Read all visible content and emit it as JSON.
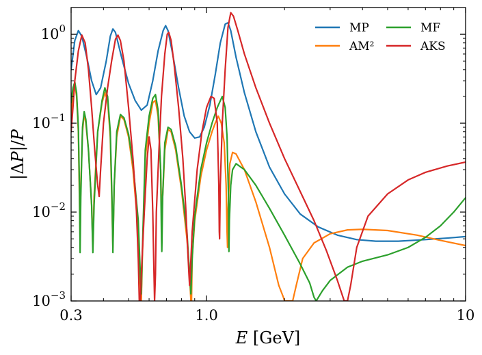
{
  "chart_data": {
    "type": "line",
    "title": "",
    "xlabel": "E [GeV]",
    "ylabel": "|ΔP|/P",
    "xscale": "log",
    "yscale": "log",
    "xlim": [
      0.3,
      10
    ],
    "ylim": [
      0.001,
      2
    ],
    "grid": false,
    "legend": {
      "position": "top-right",
      "columns": 2
    },
    "x_ticks": [
      {
        "value": 0.3,
        "label": "0.3"
      },
      {
        "value": 1.0,
        "label": "1.0"
      },
      {
        "value": 10,
        "label": "10"
      }
    ],
    "y_ticks": [
      {
        "value": 1,
        "base": "10",
        "exp": "0"
      },
      {
        "value": 0.1,
        "base": "10",
        "exp": "−1"
      },
      {
        "value": 0.01,
        "base": "10",
        "exp": "−2"
      },
      {
        "value": 0.001,
        "base": "10",
        "exp": "−3"
      }
    ],
    "series": [
      {
        "name": "MP",
        "color": "#1f77b4",
        "points": [
          [
            0.3,
            0.4
          ],
          [
            0.31,
            0.85
          ],
          [
            0.32,
            1.1
          ],
          [
            0.33,
            0.95
          ],
          [
            0.345,
            0.55
          ],
          [
            0.36,
            0.3
          ],
          [
            0.375,
            0.21
          ],
          [
            0.39,
            0.25
          ],
          [
            0.41,
            0.5
          ],
          [
            0.425,
            0.95
          ],
          [
            0.435,
            1.15
          ],
          [
            0.445,
            1.05
          ],
          [
            0.47,
            0.55
          ],
          [
            0.5,
            0.28
          ],
          [
            0.53,
            0.18
          ],
          [
            0.56,
            0.14
          ],
          [
            0.59,
            0.16
          ],
          [
            0.62,
            0.3
          ],
          [
            0.65,
            0.65
          ],
          [
            0.68,
            1.1
          ],
          [
            0.695,
            1.25
          ],
          [
            0.71,
            1.1
          ],
          [
            0.74,
            0.6
          ],
          [
            0.78,
            0.25
          ],
          [
            0.82,
            0.12
          ],
          [
            0.86,
            0.08
          ],
          [
            0.9,
            0.068
          ],
          [
            0.94,
            0.07
          ],
          [
            0.98,
            0.09
          ],
          [
            1.03,
            0.16
          ],
          [
            1.08,
            0.35
          ],
          [
            1.13,
            0.8
          ],
          [
            1.18,
            1.3
          ],
          [
            1.21,
            1.35
          ],
          [
            1.24,
            1.1
          ],
          [
            1.3,
            0.55
          ],
          [
            1.4,
            0.22
          ],
          [
            1.55,
            0.08
          ],
          [
            1.75,
            0.032
          ],
          [
            2.0,
            0.016
          ],
          [
            2.3,
            0.0095
          ],
          [
            2.7,
            0.0068
          ],
          [
            3.2,
            0.0055
          ],
          [
            3.8,
            0.0049
          ],
          [
            4.5,
            0.0047
          ],
          [
            5.5,
            0.0047
          ],
          [
            7.0,
            0.0049
          ],
          [
            8.5,
            0.0051
          ],
          [
            10.0,
            0.0053
          ]
        ]
      },
      {
        "name": "AM²",
        "color": "#ff7f0e",
        "points": [
          [
            0.3,
            0.12
          ],
          [
            0.305,
            0.22
          ],
          [
            0.31,
            0.27
          ],
          [
            0.315,
            0.2
          ],
          [
            0.32,
            0.08
          ],
          [
            0.323,
            0.015
          ],
          [
            0.325,
            0.005
          ],
          [
            0.327,
            0.02
          ],
          [
            0.332,
            0.08
          ],
          [
            0.337,
            0.13
          ],
          [
            0.342,
            0.1
          ],
          [
            0.35,
            0.05
          ],
          [
            0.36,
            0.012
          ],
          [
            0.364,
            0.004
          ],
          [
            0.368,
            0.015
          ],
          [
            0.38,
            0.08
          ],
          [
            0.395,
            0.17
          ],
          [
            0.405,
            0.22
          ],
          [
            0.415,
            0.18
          ],
          [
            0.425,
            0.07
          ],
          [
            0.432,
            0.01
          ],
          [
            0.435,
            0.004
          ],
          [
            0.44,
            0.02
          ],
          [
            0.45,
            0.07
          ],
          [
            0.465,
            0.12
          ],
          [
            0.48,
            0.11
          ],
          [
            0.5,
            0.07
          ],
          [
            0.52,
            0.03
          ],
          [
            0.545,
            0.006
          ],
          [
            0.555,
            0.0015
          ],
          [
            0.56,
            0.001
          ],
          [
            0.565,
            0.003
          ],
          [
            0.58,
            0.04
          ],
          [
            0.6,
            0.1
          ],
          [
            0.62,
            0.17
          ],
          [
            0.635,
            0.18
          ],
          [
            0.65,
            0.12
          ],
          [
            0.665,
            0.03
          ],
          [
            0.672,
            0.008
          ],
          [
            0.677,
            0.015
          ],
          [
            0.69,
            0.05
          ],
          [
            0.71,
            0.085
          ],
          [
            0.73,
            0.08
          ],
          [
            0.76,
            0.05
          ],
          [
            0.8,
            0.018
          ],
          [
            0.84,
            0.005
          ],
          [
            0.86,
            0.002
          ],
          [
            0.87,
            0.001
          ],
          [
            0.875,
            0.001
          ],
          [
            0.88,
            0.003
          ],
          [
            0.9,
            0.008
          ],
          [
            0.95,
            0.025
          ],
          [
            1.0,
            0.05
          ],
          [
            1.05,
            0.08
          ],
          [
            1.08,
            0.1
          ],
          [
            1.11,
            0.12
          ],
          [
            1.14,
            0.1
          ],
          [
            1.17,
            0.06
          ],
          [
            1.19,
            0.02
          ],
          [
            1.2,
            0.006
          ],
          [
            1.205,
            0.004
          ],
          [
            1.21,
            0.01
          ],
          [
            1.23,
            0.035
          ],
          [
            1.26,
            0.047
          ],
          [
            1.3,
            0.045
          ],
          [
            1.4,
            0.03
          ],
          [
            1.55,
            0.013
          ],
          [
            1.75,
            0.004
          ],
          [
            1.9,
            0.0015
          ],
          [
            1.98,
            0.0011
          ],
          [
            2.0,
            0.001
          ],
          [
            2.15,
            0.001
          ],
          [
            2.22,
            0.0015
          ],
          [
            2.35,
            0.003
          ],
          [
            2.6,
            0.0045
          ],
          [
            3.0,
            0.0057
          ],
          [
            3.5,
            0.0063
          ],
          [
            4.0,
            0.0064
          ],
          [
            5.0,
            0.0062
          ],
          [
            6.5,
            0.0055
          ],
          [
            8.0,
            0.0048
          ],
          [
            10.0,
            0.0042
          ]
        ]
      },
      {
        "name": "MF",
        "color": "#2ca02c",
        "points": [
          [
            0.3,
            0.17
          ],
          [
            0.305,
            0.25
          ],
          [
            0.31,
            0.29
          ],
          [
            0.315,
            0.22
          ],
          [
            0.32,
            0.09
          ],
          [
            0.323,
            0.02
          ],
          [
            0.325,
            0.0035
          ],
          [
            0.327,
            0.015
          ],
          [
            0.332,
            0.09
          ],
          [
            0.337,
            0.135
          ],
          [
            0.342,
            0.11
          ],
          [
            0.35,
            0.05
          ],
          [
            0.36,
            0.012
          ],
          [
            0.364,
            0.0035
          ],
          [
            0.368,
            0.012
          ],
          [
            0.38,
            0.08
          ],
          [
            0.395,
            0.18
          ],
          [
            0.405,
            0.25
          ],
          [
            0.415,
            0.2
          ],
          [
            0.425,
            0.08
          ],
          [
            0.432,
            0.012
          ],
          [
            0.435,
            0.0035
          ],
          [
            0.44,
            0.02
          ],
          [
            0.45,
            0.08
          ],
          [
            0.465,
            0.125
          ],
          [
            0.48,
            0.115
          ],
          [
            0.5,
            0.075
          ],
          [
            0.52,
            0.035
          ],
          [
            0.545,
            0.008
          ],
          [
            0.555,
            0.002
          ],
          [
            0.56,
            0.0012
          ],
          [
            0.565,
            0.0035
          ],
          [
            0.58,
            0.05
          ],
          [
            0.6,
            0.12
          ],
          [
            0.62,
            0.19
          ],
          [
            0.635,
            0.21
          ],
          [
            0.65,
            0.14
          ],
          [
            0.665,
            0.03
          ],
          [
            0.67,
            0.005
          ],
          [
            0.672,
            0.0036
          ],
          [
            0.677,
            0.015
          ],
          [
            0.69,
            0.06
          ],
          [
            0.71,
            0.09
          ],
          [
            0.73,
            0.085
          ],
          [
            0.76,
            0.055
          ],
          [
            0.8,
            0.02
          ],
          [
            0.84,
            0.006
          ],
          [
            0.86,
            0.002
          ],
          [
            0.87,
            0.0012
          ],
          [
            0.88,
            0.003
          ],
          [
            0.9,
            0.009
          ],
          [
            0.95,
            0.03
          ],
          [
            1.0,
            0.06
          ],
          [
            1.05,
            0.1
          ],
          [
            1.1,
            0.15
          ],
          [
            1.15,
            0.2
          ],
          [
            1.18,
            0.15
          ],
          [
            1.2,
            0.07
          ],
          [
            1.215,
            0.015
          ],
          [
            1.22,
            0.0036
          ],
          [
            1.225,
            0.008
          ],
          [
            1.24,
            0.02
          ],
          [
            1.26,
            0.03
          ],
          [
            1.3,
            0.035
          ],
          [
            1.4,
            0.03
          ],
          [
            1.55,
            0.02
          ],
          [
            1.75,
            0.011
          ],
          [
            2.0,
            0.0055
          ],
          [
            2.3,
            0.0026
          ],
          [
            2.5,
            0.0016
          ],
          [
            2.6,
            0.0011
          ],
          [
            2.65,
            0.001
          ],
          [
            2.8,
            0.0013
          ],
          [
            3.0,
            0.0017
          ],
          [
            3.5,
            0.0024
          ],
          [
            4.0,
            0.0028
          ],
          [
            5.0,
            0.0033
          ],
          [
            6.0,
            0.004
          ],
          [
            7.0,
            0.0052
          ],
          [
            8.0,
            0.007
          ],
          [
            9.0,
            0.01
          ],
          [
            10.0,
            0.0145
          ]
        ]
      },
      {
        "name": "AKS",
        "color": "#d62728",
        "points": [
          [
            0.3,
            0.08
          ],
          [
            0.305,
            0.15
          ],
          [
            0.31,
            0.3
          ],
          [
            0.32,
            0.65
          ],
          [
            0.33,
            0.98
          ],
          [
            0.34,
            0.8
          ],
          [
            0.35,
            0.4
          ],
          [
            0.36,
            0.15
          ],
          [
            0.37,
            0.05
          ],
          [
            0.38,
            0.02
          ],
          [
            0.385,
            0.015
          ],
          [
            0.39,
            0.03
          ],
          [
            0.4,
            0.1
          ],
          [
            0.415,
            0.25
          ],
          [
            0.43,
            0.5
          ],
          [
            0.445,
            0.88
          ],
          [
            0.455,
            0.98
          ],
          [
            0.465,
            0.85
          ],
          [
            0.48,
            0.5
          ],
          [
            0.5,
            0.15
          ],
          [
            0.52,
            0.04
          ],
          [
            0.535,
            0.012
          ],
          [
            0.545,
            0.003
          ],
          [
            0.55,
            0.001
          ],
          [
            0.555,
            0.001
          ],
          [
            0.56,
            0.002
          ],
          [
            0.575,
            0.01
          ],
          [
            0.59,
            0.04
          ],
          [
            0.6,
            0.07
          ],
          [
            0.61,
            0.05
          ],
          [
            0.62,
            0.01
          ],
          [
            0.625,
            0.003
          ],
          [
            0.63,
            0.001
          ],
          [
            0.635,
            0.002
          ],
          [
            0.64,
            0.01
          ],
          [
            0.655,
            0.05
          ],
          [
            0.67,
            0.2
          ],
          [
            0.69,
            0.6
          ],
          [
            0.705,
            1.0
          ],
          [
            0.715,
            1.05
          ],
          [
            0.73,
            0.85
          ],
          [
            0.75,
            0.45
          ],
          [
            0.78,
            0.15
          ],
          [
            0.81,
            0.04
          ],
          [
            0.83,
            0.012
          ],
          [
            0.845,
            0.004
          ],
          [
            0.855,
            0.002
          ],
          [
            0.86,
            0.0015
          ],
          [
            0.865,
            0.002
          ],
          [
            0.88,
            0.006
          ],
          [
            0.92,
            0.03
          ],
          [
            0.96,
            0.08
          ],
          [
            1.0,
            0.15
          ],
          [
            1.04,
            0.2
          ],
          [
            1.07,
            0.19
          ],
          [
            1.1,
            0.1
          ],
          [
            1.115,
            0.02
          ],
          [
            1.12,
            0.006
          ],
          [
            1.123,
            0.005
          ],
          [
            1.13,
            0.02
          ],
          [
            1.15,
            0.1
          ],
          [
            1.18,
            0.4
          ],
          [
            1.21,
            1.2
          ],
          [
            1.24,
            1.75
          ],
          [
            1.27,
            1.6
          ],
          [
            1.32,
            1.1
          ],
          [
            1.4,
            0.6
          ],
          [
            1.55,
            0.25
          ],
          [
            1.75,
            0.1
          ],
          [
            2.0,
            0.04
          ],
          [
            2.3,
            0.017
          ],
          [
            2.6,
            0.008
          ],
          [
            2.9,
            0.0037
          ],
          [
            3.2,
            0.0017
          ],
          [
            3.4,
            0.001
          ],
          [
            3.5,
            0.001
          ],
          [
            3.6,
            0.0015
          ],
          [
            3.8,
            0.004
          ],
          [
            4.2,
            0.009
          ],
          [
            5.0,
            0.016
          ],
          [
            6.0,
            0.023
          ],
          [
            7.0,
            0.028
          ],
          [
            8.5,
            0.033
          ],
          [
            10.0,
            0.0365
          ]
        ]
      }
    ]
  }
}
